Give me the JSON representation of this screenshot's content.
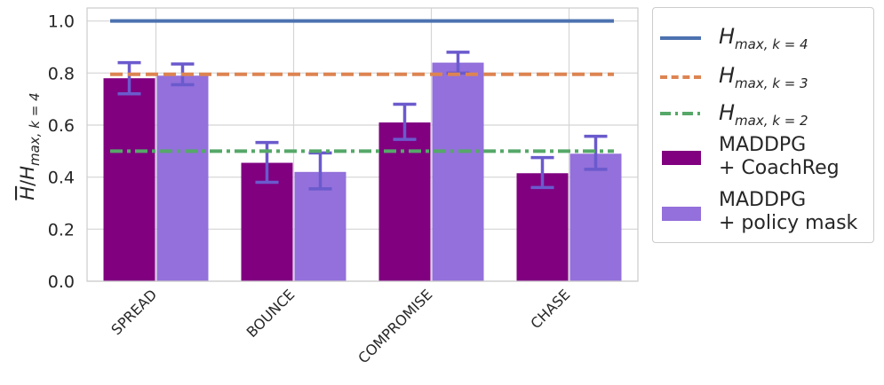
{
  "chart_data": {
    "type": "bar",
    "categories": [
      "SPREAD",
      "BOUNCE",
      "COMPROMISE",
      "CHASE"
    ],
    "series": [
      {
        "name": "MADDPG\n+ CoachReg",
        "color": "#800080",
        "values": [
          0.78,
          0.455,
          0.61,
          0.415
        ],
        "err_low": [
          0.72,
          0.38,
          0.545,
          0.36
        ],
        "err_high": [
          0.84,
          0.533,
          0.68,
          0.475
        ]
      },
      {
        "name": "MADDPG\n+ policy mask",
        "color": "#9370DB",
        "values": [
          0.79,
          0.42,
          0.84,
          0.49
        ],
        "err_low": [
          0.755,
          0.355,
          0.8,
          0.43
        ],
        "err_high": [
          0.835,
          0.493,
          0.88,
          0.557
        ]
      }
    ],
    "reference_lines": [
      {
        "name": "H_max,k=4",
        "value": 1.0,
        "style": "solid",
        "color": "#4C72B0"
      },
      {
        "name": "H_max,k=3",
        "value": 0.795,
        "style": "dashed",
        "color": "#DD8452"
      },
      {
        "name": "H_max,k=2",
        "value": 0.5,
        "style": "dashdot",
        "color": "#55A868"
      }
    ],
    "error_bar_color": "#6A5ACD",
    "ylabel": "H̄/H_max,k=4",
    "ylim": [
      0.0,
      1.05
    ],
    "yticks": [
      "0.0",
      "0.2",
      "0.4",
      "0.6",
      "0.8",
      "1.0"
    ],
    "ytick_values": [
      0.0,
      0.2,
      0.4,
      0.6,
      0.8,
      1.0
    ],
    "grid": true,
    "legend_position": "outside-right"
  },
  "legend": {
    "line_labels": [
      {
        "base": "H",
        "sub": "max, k = 4"
      },
      {
        "base": "H",
        "sub": "max, k = 3"
      },
      {
        "base": "H",
        "sub": "max, k = 2"
      }
    ]
  }
}
